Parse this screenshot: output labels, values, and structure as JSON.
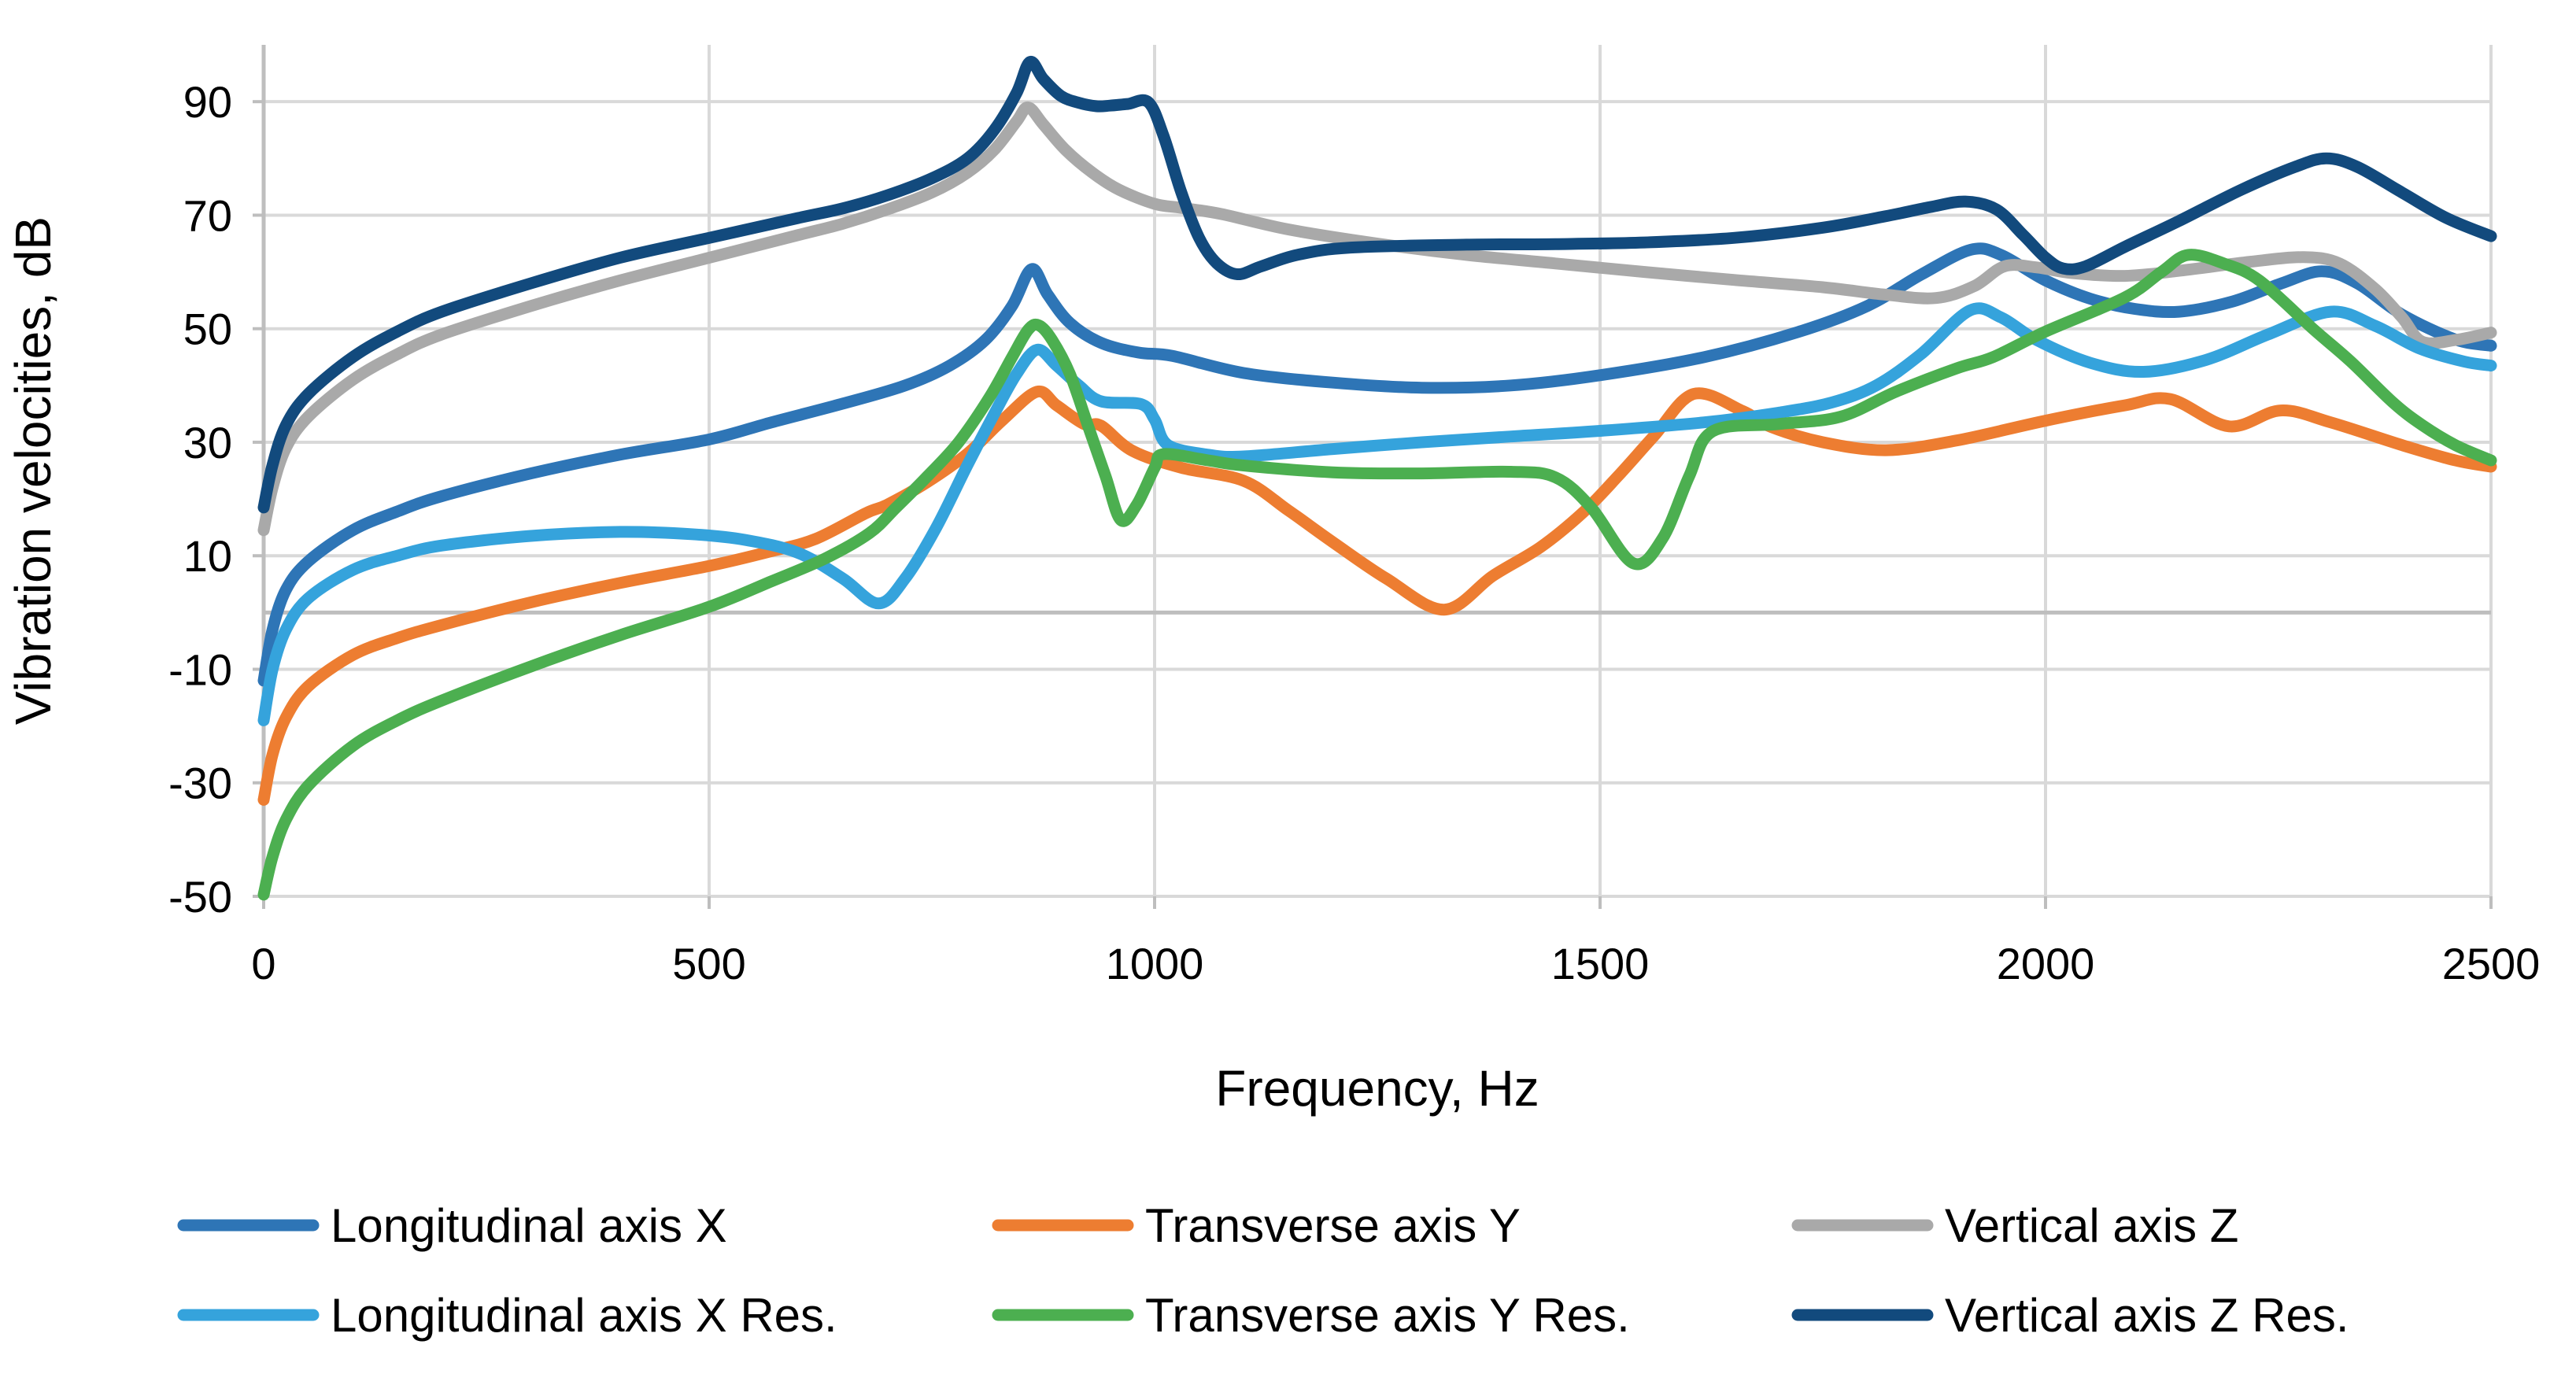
{
  "chart_data": {
    "type": "line",
    "title": "",
    "xlabel": "Frequency, Hz",
    "ylabel": "Vibration velocities, dB",
    "xlim": [
      0,
      2500
    ],
    "ylim": [
      -50,
      100
    ],
    "x_ticks": [
      0,
      500,
      1000,
      1500,
      2000,
      2500
    ],
    "y_tick_labels": [
      90,
      70,
      50,
      30,
      10,
      -10,
      -30,
      -50
    ],
    "grid": "horizontal every 20 dB, vertical every 500 Hz, extra axis line at 0 dB",
    "legend_position": "bottom, 3 columns x 2 rows",
    "colors": {
      "gridline": "#D9D9D9",
      "axis_line": "#BEBEBE",
      "text": "#000000",
      "background": "#FFFFFF"
    },
    "series": [
      {
        "name": "Longitudinal axis X",
        "color": "#2E75B6",
        "points": [
          [
            0,
            -12
          ],
          [
            10,
            -3
          ],
          [
            25,
            4
          ],
          [
            50,
            9
          ],
          [
            100,
            14.5
          ],
          [
            150,
            17.8
          ],
          [
            200,
            20.5
          ],
          [
            300,
            24.5
          ],
          [
            400,
            27.8
          ],
          [
            500,
            30.5
          ],
          [
            570,
            33.5
          ],
          [
            650,
            36.8
          ],
          [
            720,
            40
          ],
          [
            770,
            43.5
          ],
          [
            810,
            48
          ],
          [
            840,
            54
          ],
          [
            862,
            60.5
          ],
          [
            880,
            56
          ],
          [
            905,
            51
          ],
          [
            940,
            47.5
          ],
          [
            982,
            45.8
          ],
          [
            1020,
            45.2
          ],
          [
            1100,
            42.2
          ],
          [
            1200,
            40.5
          ],
          [
            1300,
            39.6
          ],
          [
            1400,
            40
          ],
          [
            1500,
            41.8
          ],
          [
            1617,
            45
          ],
          [
            1722,
            49.4
          ],
          [
            1800,
            54
          ],
          [
            1860,
            59.5
          ],
          [
            1916,
            63.9
          ],
          [
            1950,
            63
          ],
          [
            2000,
            58.5
          ],
          [
            2050,
            55.3
          ],
          [
            2100,
            53.5
          ],
          [
            2150,
            53
          ],
          [
            2210,
            54.8
          ],
          [
            2265,
            58
          ],
          [
            2310,
            60.1
          ],
          [
            2350,
            58
          ],
          [
            2400,
            52.5
          ],
          [
            2460,
            48.1
          ],
          [
            2500,
            47
          ]
        ]
      },
      {
        "name": "Transverse axis Y",
        "color": "#ED7D31",
        "points": [
          [
            0,
            -33
          ],
          [
            10,
            -25
          ],
          [
            25,
            -18.5
          ],
          [
            50,
            -13
          ],
          [
            100,
            -7.5
          ],
          [
            150,
            -4.5
          ],
          [
            200,
            -2.2
          ],
          [
            300,
            1.8
          ],
          [
            400,
            5.2
          ],
          [
            500,
            8.2
          ],
          [
            570,
            10.8
          ],
          [
            620,
            13
          ],
          [
            676,
            17.5
          ],
          [
            700,
            19
          ],
          [
            745,
            23
          ],
          [
            790,
            28
          ],
          [
            830,
            34
          ],
          [
            868,
            38.9
          ],
          [
            890,
            36.5
          ],
          [
            921,
            33.2
          ],
          [
            940,
            32.9
          ],
          [
            975,
            28.5
          ],
          [
            1030,
            25.5
          ],
          [
            1100,
            23.2
          ],
          [
            1150,
            18
          ],
          [
            1200,
            12.4
          ],
          [
            1260,
            6
          ],
          [
            1325,
            0.5
          ],
          [
            1380,
            6.5
          ],
          [
            1433,
            11.5
          ],
          [
            1480,
            17.5
          ],
          [
            1520,
            24
          ],
          [
            1560,
            31
          ],
          [
            1605,
            38.5
          ],
          [
            1660,
            35.5
          ],
          [
            1692,
            32.7
          ],
          [
            1750,
            30
          ],
          [
            1821,
            28.6
          ],
          [
            1900,
            30.3
          ],
          [
            2000,
            33.8
          ],
          [
            2089,
            36.5
          ],
          [
            2140,
            37.6
          ],
          [
            2206,
            32.8
          ],
          [
            2264,
            35.6
          ],
          [
            2320,
            33.5
          ],
          [
            2400,
            29.5
          ],
          [
            2460,
            26.8
          ],
          [
            2500,
            25.7
          ]
        ]
      },
      {
        "name": "Vertical axis Z",
        "color": "#A9A9A9",
        "points": [
          [
            0,
            14.5
          ],
          [
            10,
            22
          ],
          [
            25,
            29
          ],
          [
            50,
            34.5
          ],
          [
            100,
            41
          ],
          [
            150,
            45.5
          ],
          [
            200,
            49
          ],
          [
            300,
            54
          ],
          [
            400,
            58.5
          ],
          [
            500,
            62.5
          ],
          [
            600,
            66.5
          ],
          [
            650,
            68.5
          ],
          [
            700,
            71
          ],
          [
            750,
            74
          ],
          [
            790,
            77.5
          ],
          [
            820,
            81.5
          ],
          [
            845,
            86.5
          ],
          [
            858,
            89
          ],
          [
            875,
            86
          ],
          [
            900,
            81.5
          ],
          [
            930,
            77.5
          ],
          [
            960,
            74.5
          ],
          [
            1000,
            72
          ],
          [
            1030,
            71.3
          ],
          [
            1075,
            70.2
          ],
          [
            1150,
            67.5
          ],
          [
            1250,
            65
          ],
          [
            1350,
            63
          ],
          [
            1450,
            61.5
          ],
          [
            1550,
            60
          ],
          [
            1650,
            58.6
          ],
          [
            1750,
            57.3
          ],
          [
            1820,
            56
          ],
          [
            1877,
            55.4
          ],
          [
            1920,
            57.5
          ],
          [
            1954,
            61
          ],
          [
            1990,
            60.8
          ],
          [
            2030,
            59.8
          ],
          [
            2089,
            59.3
          ],
          [
            2150,
            60.2
          ],
          [
            2230,
            61.8
          ],
          [
            2290,
            62.6
          ],
          [
            2330,
            61.5
          ],
          [
            2370,
            57
          ],
          [
            2400,
            52
          ],
          [
            2423,
            47.7
          ],
          [
            2460,
            48
          ],
          [
            2500,
            49.3
          ]
        ]
      },
      {
        "name": "Longitudinal axis X Res.",
        "color": "#35A3DC",
        "points": [
          [
            0,
            -19
          ],
          [
            10,
            -10
          ],
          [
            25,
            -3
          ],
          [
            50,
            2.5
          ],
          [
            100,
            7.5
          ],
          [
            150,
            10
          ],
          [
            200,
            11.8
          ],
          [
            300,
            13.5
          ],
          [
            400,
            14.2
          ],
          [
            480,
            13.8
          ],
          [
            540,
            12.8
          ],
          [
            600,
            10.5
          ],
          [
            650,
            6
          ],
          [
            690,
            1.6
          ],
          [
            720,
            6
          ],
          [
            755,
            15
          ],
          [
            790,
            26
          ],
          [
            820,
            35
          ],
          [
            845,
            42
          ],
          [
            868,
            46.3
          ],
          [
            890,
            43.5
          ],
          [
            915,
            40
          ],
          [
            940,
            37.2
          ],
          [
            985,
            36.7
          ],
          [
            1000,
            34
          ],
          [
            1015,
            29.5
          ],
          [
            1060,
            27.8
          ],
          [
            1100,
            27.5
          ],
          [
            1200,
            28.8
          ],
          [
            1300,
            30
          ],
          [
            1400,
            31
          ],
          [
            1500,
            32
          ],
          [
            1617,
            33.5
          ],
          [
            1700,
            35.2
          ],
          [
            1760,
            37
          ],
          [
            1810,
            40
          ],
          [
            1860,
            45.5
          ],
          [
            1915,
            53.2
          ],
          [
            1950,
            52
          ],
          [
            1990,
            48
          ],
          [
            2050,
            44
          ],
          [
            2110,
            42.4
          ],
          [
            2180,
            44.5
          ],
          [
            2250,
            49
          ],
          [
            2320,
            53
          ],
          [
            2370,
            50.5
          ],
          [
            2420,
            46.5
          ],
          [
            2470,
            44.2
          ],
          [
            2500,
            43.5
          ]
        ]
      },
      {
        "name": "Transverse axis Y Res.",
        "color": "#4CAF50",
        "points": [
          [
            0,
            -49.7
          ],
          [
            10,
            -43
          ],
          [
            25,
            -36.5
          ],
          [
            50,
            -30.5
          ],
          [
            100,
            -23.5
          ],
          [
            150,
            -19
          ],
          [
            200,
            -15.5
          ],
          [
            300,
            -9.5
          ],
          [
            400,
            -4
          ],
          [
            500,
            1
          ],
          [
            570,
            5.5
          ],
          [
            630,
            9.5
          ],
          [
            680,
            14
          ],
          [
            710,
            18.5
          ],
          [
            745,
            24
          ],
          [
            780,
            30
          ],
          [
            815,
            38
          ],
          [
            840,
            45
          ],
          [
            858,
            49.8
          ],
          [
            870,
            50.6
          ],
          [
            885,
            48
          ],
          [
            905,
            42
          ],
          [
            925,
            33
          ],
          [
            945,
            24
          ],
          [
            962,
            16.3
          ],
          [
            980,
            19
          ],
          [
            1000,
            25.5
          ],
          [
            1010,
            27.9
          ],
          [
            1060,
            26.8
          ],
          [
            1100,
            25.9
          ],
          [
            1200,
            24.7
          ],
          [
            1300,
            24.5
          ],
          [
            1400,
            24.8
          ],
          [
            1450,
            23.8
          ],
          [
            1490,
            18.5
          ],
          [
            1537,
            8.7
          ],
          [
            1570,
            13
          ],
          [
            1600,
            24
          ],
          [
            1626,
            31.9
          ],
          [
            1700,
            33.2
          ],
          [
            1770,
            34.5
          ],
          [
            1832,
            38.9
          ],
          [
            1900,
            43
          ],
          [
            1941,
            45
          ],
          [
            2000,
            49.5
          ],
          [
            2089,
            55.5
          ],
          [
            2130,
            60
          ],
          [
            2160,
            63
          ],
          [
            2200,
            61.5
          ],
          [
            2240,
            58.5
          ],
          [
            2300,
            50
          ],
          [
            2342,
            44.3
          ],
          [
            2390,
            37
          ],
          [
            2423,
            33
          ],
          [
            2460,
            29.5
          ],
          [
            2500,
            26.8
          ]
        ]
      },
      {
        "name": "Vertical axis Z Res.",
        "color": "#124A7D",
        "points": [
          [
            0,
            18.5
          ],
          [
            10,
            26
          ],
          [
            25,
            33
          ],
          [
            50,
            38.5
          ],
          [
            100,
            45
          ],
          [
            150,
            49.5
          ],
          [
            200,
            53
          ],
          [
            300,
            58
          ],
          [
            400,
            62.5
          ],
          [
            500,
            66
          ],
          [
            600,
            69.5
          ],
          [
            650,
            71.2
          ],
          [
            700,
            73.5
          ],
          [
            750,
            76.5
          ],
          [
            790,
            80
          ],
          [
            820,
            85
          ],
          [
            845,
            91.5
          ],
          [
            860,
            97
          ],
          [
            875,
            94
          ],
          [
            895,
            91
          ],
          [
            915,
            89.8
          ],
          [
            935,
            89.2
          ],
          [
            950,
            89.3
          ],
          [
            970,
            89.6
          ],
          [
            993,
            89.9
          ],
          [
            1010,
            84
          ],
          [
            1030,
            74
          ],
          [
            1050,
            66
          ],
          [
            1070,
            61.5
          ],
          [
            1093,
            59.6
          ],
          [
            1120,
            61
          ],
          [
            1160,
            63
          ],
          [
            1220,
            64.3
          ],
          [
            1350,
            64.8
          ],
          [
            1450,
            64.9
          ],
          [
            1550,
            65.2
          ],
          [
            1650,
            66
          ],
          [
            1750,
            67.8
          ],
          [
            1820,
            69.8
          ],
          [
            1870,
            71.4
          ],
          [
            1910,
            72.4
          ],
          [
            1945,
            71
          ],
          [
            1975,
            66.5
          ],
          [
            2000,
            62.5
          ],
          [
            2020,
            60.6
          ],
          [
            2045,
            61
          ],
          [
            2090,
            64.5
          ],
          [
            2150,
            69
          ],
          [
            2220,
            74.5
          ],
          [
            2280,
            78.5
          ],
          [
            2315,
            80
          ],
          [
            2350,
            78.5
          ],
          [
            2400,
            74
          ],
          [
            2450,
            69.5
          ],
          [
            2500,
            66.3
          ]
        ]
      }
    ],
    "legend_order_note": "row-major: X, Y, Z on top row; X Res., Y Res., Z Res. on bottom row"
  }
}
